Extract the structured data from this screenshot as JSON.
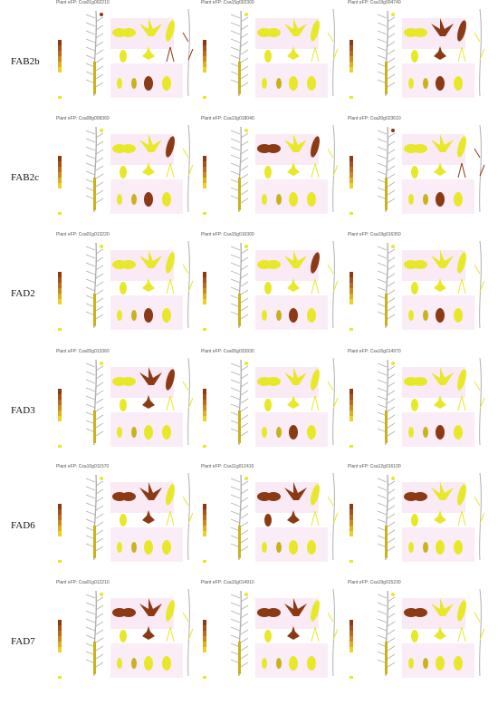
{
  "rows": [
    {
      "label": "FAB2b",
      "panels": [
        {
          "title": "Plant eFP: Csa01g002210",
          "dark": [
            "cot",
            "root"
          ]
        },
        {
          "title": "Plant eFP: Csa15g002300",
          "dark": []
        },
        {
          "title": "Plant eFP: Csa19g004740",
          "dark": [
            "flower",
            "cot",
            "leaf"
          ]
        }
      ]
    },
    {
      "label": "FAB2c",
      "panels": [
        {
          "title": "Plant eFP: Csa08g008360",
          "dark": [
            "cot",
            "leaf"
          ]
        },
        {
          "title": "Plant eFP: Csa13g018040",
          "dark": [
            "cot2",
            "leaf"
          ]
        },
        {
          "title": "Plant eFP: Csa20g023610",
          "dark": [
            "cot",
            "root"
          ]
        }
      ]
    },
    {
      "label": "FAD2",
      "panels": [
        {
          "title": "Plant eFP: Csa01g013220",
          "dark": [
            "cot"
          ]
        },
        {
          "title": "Plant eFP: Csa15g016300",
          "dark": [
            "cot",
            "leaf"
          ]
        },
        {
          "title": "Plant eFP: Csa19g016350",
          "dark": [
            "cot"
          ]
        }
      ]
    },
    {
      "label": "FAD3",
      "panels": [
        {
          "title": "Plant eFP: Csa05g013360",
          "dark": [
            "flower",
            "leaf"
          ]
        },
        {
          "title": "Plant eFP: Csa05g033930",
          "dark": [
            "cot"
          ]
        },
        {
          "title": "Plant eFP: Csa16g014970",
          "dark": [
            "cot"
          ]
        }
      ]
    },
    {
      "label": "FAD6",
      "panels": [
        {
          "title": "Plant eFP: Csa10g011570",
          "dark": [
            "cot2",
            "flower"
          ]
        },
        {
          "title": "Plant eFP: Csa11g012410",
          "dark": [
            "cot2",
            "flower",
            "seed"
          ]
        },
        {
          "title": "Plant eFP: Csa12g016100",
          "dark": [
            "cot2"
          ]
        }
      ]
    },
    {
      "label": "FAD7",
      "panels": [
        {
          "title": "Plant eFP: Csa01g012210",
          "dark": [
            "cot2",
            "flower"
          ]
        },
        {
          "title": "Plant eFP: Csa15g014910",
          "dark": [
            "cot2",
            "flower"
          ]
        },
        {
          "title": "Plant eFP: Csa19g015230",
          "dark": [
            "cot2"
          ]
        }
      ]
    }
  ],
  "colors": {
    "light": "#e8e82a",
    "mid": "#c9b21a",
    "dark": "#8b3a14",
    "stem": "#b0b0b0",
    "pink": "#f6d8ee"
  }
}
